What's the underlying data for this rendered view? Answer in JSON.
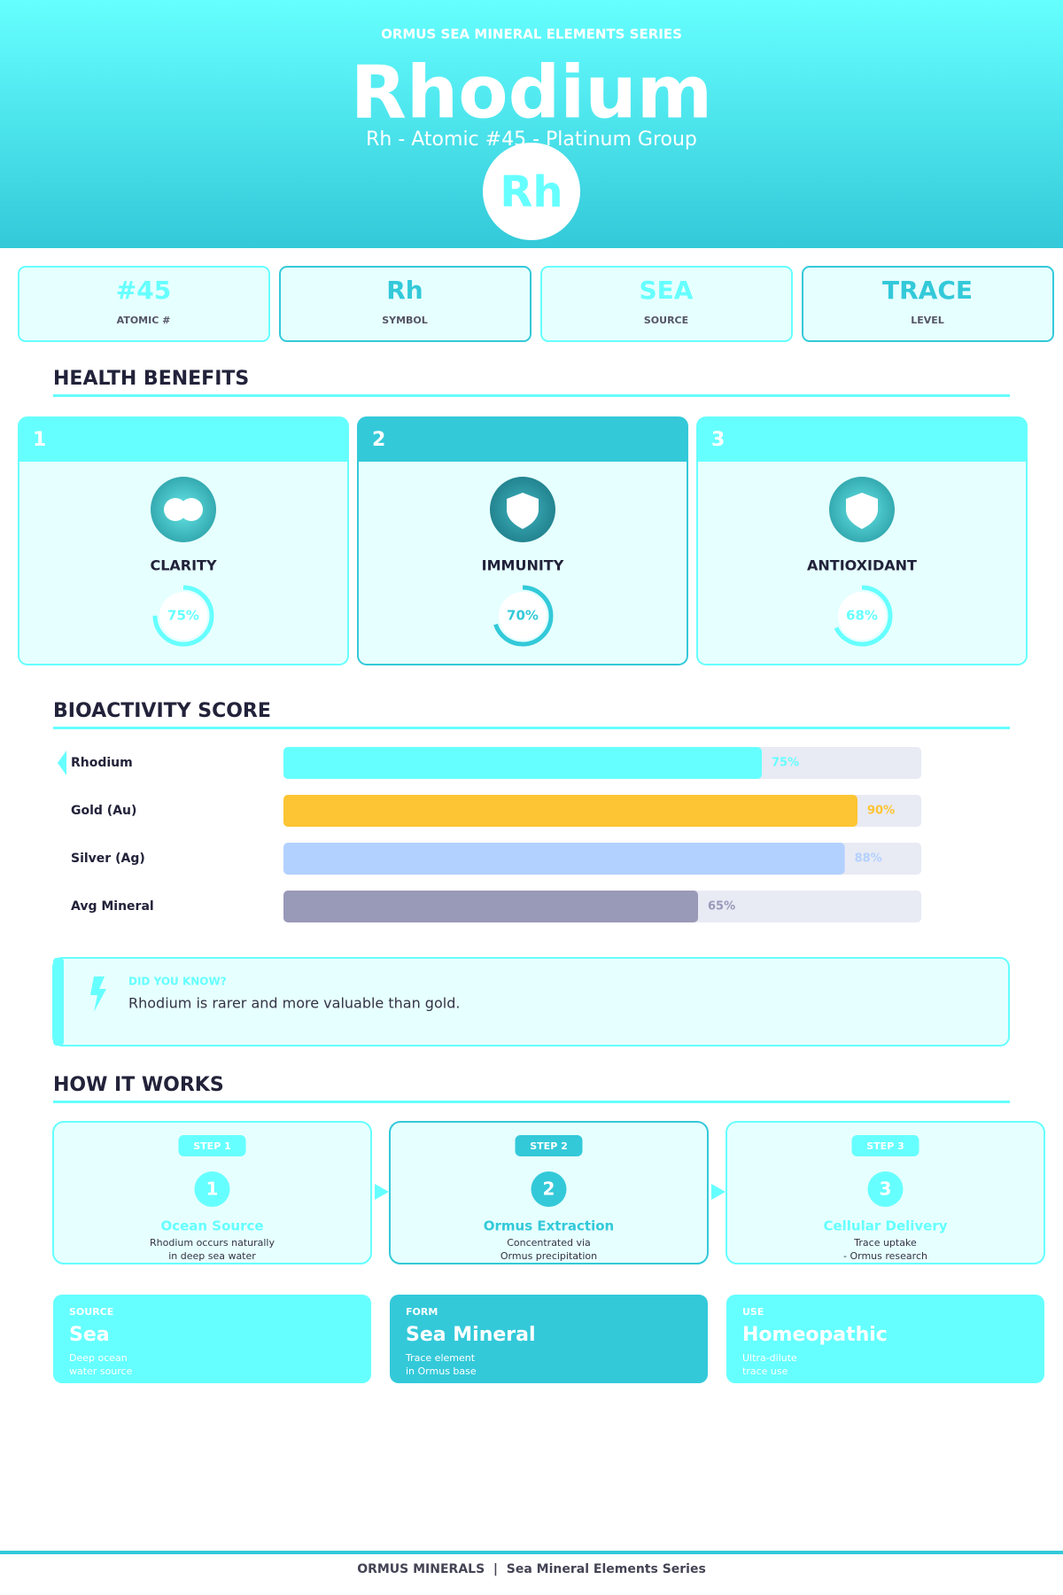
{
  "header": {
    "series_label": "ORMUS SEA MINERAL ELEMENTS SERIES",
    "title": "Rhodium",
    "subtitle": "Rh  -  Atomic #45  -  Platinum Group",
    "symbol": "Rh"
  },
  "stats": [
    {
      "value": "#45",
      "label": "ATOMIC #"
    },
    {
      "value": "Rh",
      "label": "SYMBOL"
    },
    {
      "value": "SEA",
      "label": "SOURCE"
    },
    {
      "value": "TRACE",
      "label": "LEVEL"
    }
  ],
  "health_benefits": {
    "title": "HEALTH BENEFITS",
    "score_lim": [
      0,
      100
    ],
    "items": [
      {
        "number": "1",
        "name": "CLARITY",
        "score": 75,
        "score_label": "75%"
      },
      {
        "number": "2",
        "name": "IMMUNITY",
        "score": 70,
        "score_label": "70%"
      },
      {
        "number": "3",
        "name": "ANTIOXIDANT",
        "score": 68,
        "score_label": "68%"
      }
    ]
  },
  "bioactivity": {
    "title": "BIOACTIVITY SCORE",
    "categories": [
      "Rhodium",
      "Gold (Au)",
      "Silver (Ag)",
      "Avg Mineral"
    ],
    "values": [
      75,
      90,
      88,
      65
    ],
    "value_labels": [
      "75%",
      "90%",
      "88%",
      "65%"
    ],
    "colors": [
      "#66ffff",
      "#fdc533",
      "#b3d1ff",
      "#9999b8"
    ],
    "xlim": [
      0,
      100
    ]
  },
  "fact": {
    "heading": "DID YOU KNOW?",
    "text": "Rhodium is rarer and more valuable than gold."
  },
  "how_it_works": {
    "title": "HOW IT WORKS",
    "steps": [
      {
        "badge": "STEP 1",
        "number": "1",
        "title": "Ocean Source",
        "lines": [
          "Rhodium occurs naturally",
          "in deep sea water"
        ]
      },
      {
        "badge": "STEP 2",
        "number": "2",
        "title": "Ormus Extraction",
        "lines": [
          "Concentrated via",
          "Ormus precipitation"
        ]
      },
      {
        "badge": "STEP 3",
        "number": "3",
        "title": "Cellular Delivery",
        "lines": [
          "Trace uptake",
          "- Ormus research"
        ]
      }
    ]
  },
  "info_cards": [
    {
      "label": "SOURCE",
      "value": "Sea",
      "lines": [
        "Deep ocean",
        "water source"
      ]
    },
    {
      "label": "FORM",
      "value": "Sea Mineral",
      "lines": [
        "Trace element",
        "in Ormus base"
      ]
    },
    {
      "label": "USE",
      "value": "Homeopathic",
      "lines": [
        "Ultra-dilute",
        "trace use"
      ]
    }
  ],
  "footer": "ORMUS MINERALS  |  Sea Mineral Elements Series"
}
